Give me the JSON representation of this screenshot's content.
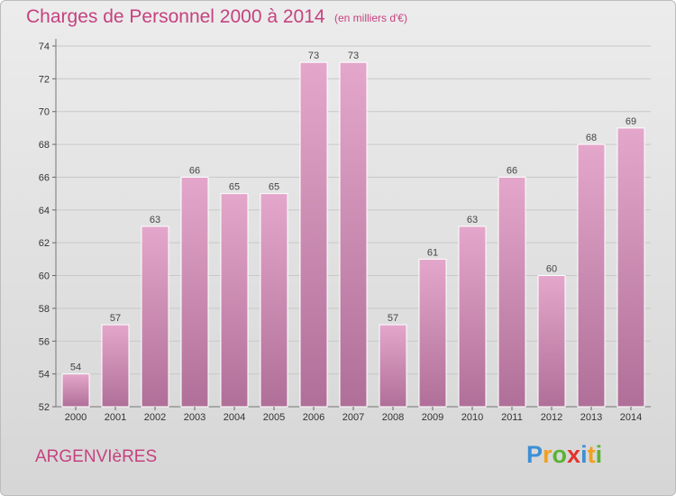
{
  "chart_data": {
    "type": "bar",
    "title": "Charges de Personnel 2000 à 2014",
    "subtitle": "(en milliers d'€)",
    "categories": [
      "2000",
      "2001",
      "2002",
      "2003",
      "2004",
      "2005",
      "2006",
      "2007",
      "2008",
      "2009",
      "2010",
      "2011",
      "2012",
      "2013",
      "2014"
    ],
    "values": [
      54,
      57,
      63,
      66,
      65,
      65,
      73,
      73,
      57,
      61,
      63,
      66,
      60,
      68,
      69
    ],
    "ylim": [
      52,
      74
    ],
    "yticks": [
      52,
      54,
      56,
      58,
      60,
      62,
      64,
      66,
      68,
      70,
      72,
      74
    ],
    "grid": true,
    "bar_color_top": "#e4a7cb",
    "bar_color_bottom": "#b06f98"
  },
  "footer": {
    "place": "ARGENVIèRES",
    "logo_letters": [
      "P",
      "r",
      "o",
      "x",
      "i",
      "t",
      "i"
    ],
    "logo_colors": [
      "#3d8fd6",
      "#f0a020",
      "#5bb336",
      "#e3342f",
      "#3d8fd6",
      "#f0a020",
      "#5bb336"
    ]
  },
  "colors": {
    "accent": "#c5427f"
  }
}
